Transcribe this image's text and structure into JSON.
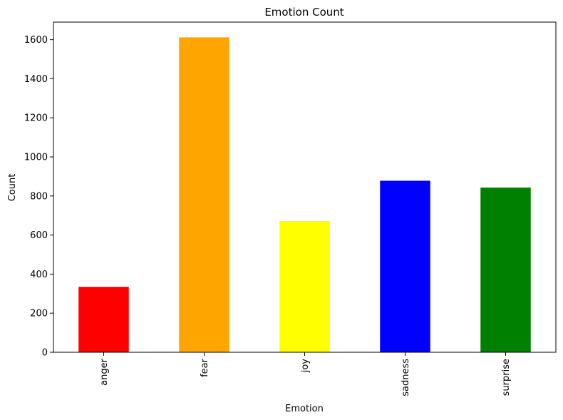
{
  "chart_data": {
    "type": "bar",
    "title": "Emotion Count",
    "xlabel": "Emotion",
    "ylabel": "Count",
    "categories": [
      "anger",
      "fear",
      "joy",
      "sadness",
      "surprise"
    ],
    "values": [
      335,
      1612,
      672,
      878,
      843
    ],
    "colors": [
      "#ff0000",
      "#ffa500",
      "#ffff00",
      "#0000ff",
      "#008000"
    ],
    "ylim": [
      0,
      1690
    ],
    "yticks": [
      0,
      200,
      400,
      600,
      800,
      1000,
      1200,
      1400,
      1600
    ],
    "grid": false,
    "legend": "none",
    "xtick_rotation": "vertical"
  }
}
